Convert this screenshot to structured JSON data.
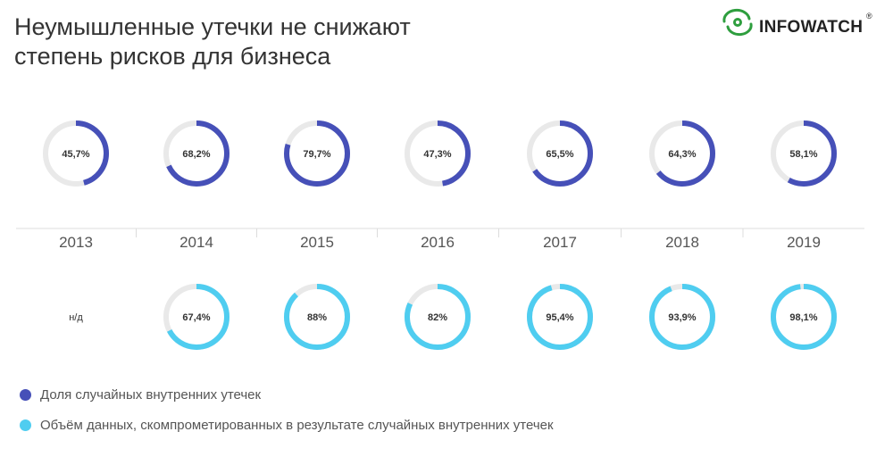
{
  "title": {
    "line1": "Неумышленные утечки не снижают",
    "line2": "степень рисков для бизнеса"
  },
  "logo": {
    "text": "INFOWATCH",
    "reg": "®",
    "icon": "eye-icon",
    "color": "#2e9e3e"
  },
  "chart_data": {
    "type": "donut",
    "categories": [
      "2013",
      "2014",
      "2015",
      "2016",
      "2017",
      "2018",
      "2019"
    ],
    "series": [
      {
        "name": "Доля случайных внутренних утечек",
        "color": "#4650b8",
        "values": [
          45.7,
          68.2,
          79.7,
          47.3,
          65.5,
          64.3,
          58.1
        ],
        "labels": [
          "45,7%",
          "68,2%",
          "79,7%",
          "47,3%",
          "65,5%",
          "64,3%",
          "58,1%"
        ]
      },
      {
        "name": "Объём данных, скомпрометированных в результате случайных внутренних утечек",
        "color": "#4fcdf0",
        "values": [
          null,
          67.4,
          88,
          82,
          95.4,
          93.9,
          98.1
        ],
        "labels": [
          "н/д",
          "67,4%",
          "88%",
          "82%",
          "95,4%",
          "93,9%",
          "98,1%"
        ]
      }
    ],
    "track_color": "#e9e9e9",
    "legend_position": "bottom-left"
  }
}
